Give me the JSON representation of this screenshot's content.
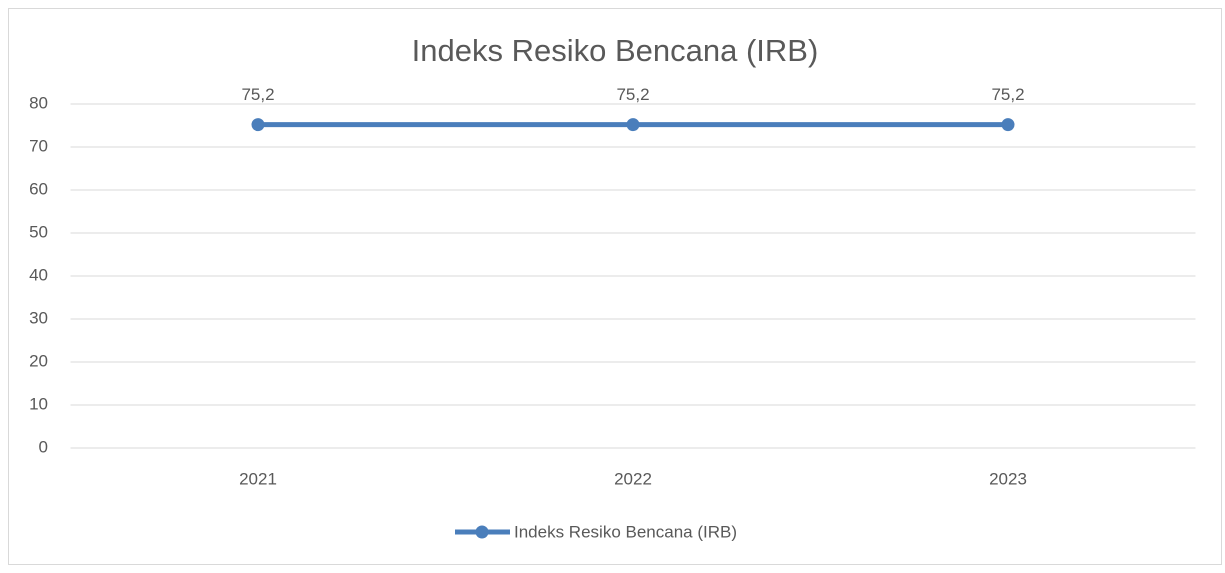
{
  "chart_data": {
    "type": "line",
    "title": "Indeks Resiko Bencana (IRB)",
    "categories": [
      "2021",
      "2022",
      "2023"
    ],
    "series": [
      {
        "name": "Indeks Resiko Bencana (IRB)",
        "color": "#4a7ebb",
        "values": [
          75.2,
          75.2,
          75.2
        ],
        "value_labels": [
          "75,2",
          "75,2",
          "75,2"
        ]
      }
    ],
    "ylim": [
      0,
      80
    ],
    "yticks": [
      0,
      10,
      20,
      30,
      40,
      50,
      60,
      70,
      80
    ],
    "grid": true,
    "legend": "bottom"
  }
}
